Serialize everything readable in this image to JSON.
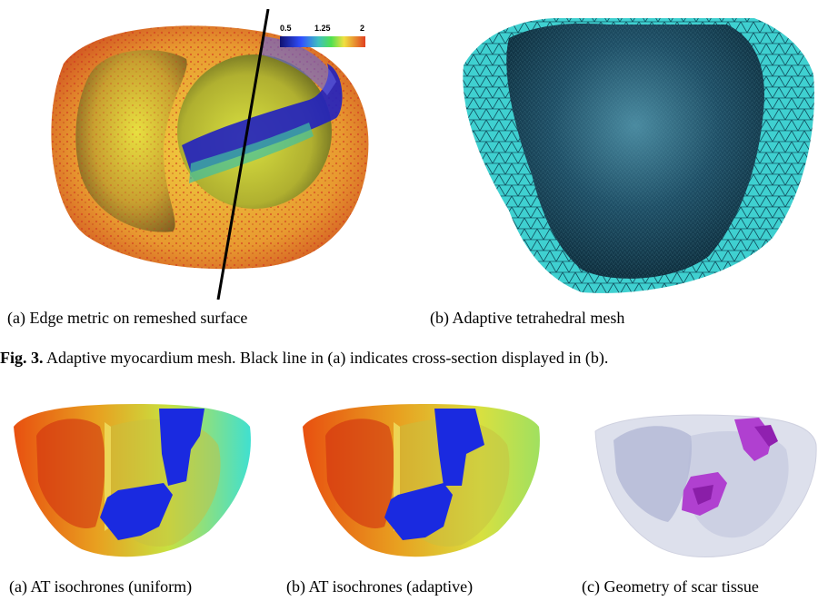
{
  "figure3": {
    "panel_a": {
      "caption": "(a) Edge metric on remeshed surface",
      "colorbar_ticks": [
        "0.5",
        "1.25",
        "2"
      ]
    },
    "panel_b": {
      "caption": "(b) Adaptive tetrahedral mesh"
    },
    "caption_prefix": "Fig. 3.",
    "caption_text": " Adaptive myocardium mesh. Black line in (a) indicates cross-section displayed in (b)."
  },
  "figure4": {
    "panel_a_caption": "(a) AT isochrones (uniform)",
    "panel_b_caption": "(b) AT isochrones (adaptive)",
    "panel_c_caption": "(c) Geometry of scar tissue"
  },
  "colors": {
    "mesh_cyan": "#3fd0d0",
    "mesh_dark": "#0f3a4a",
    "scar_blue": "#1030e0",
    "scar_purple": "#b040d0"
  }
}
